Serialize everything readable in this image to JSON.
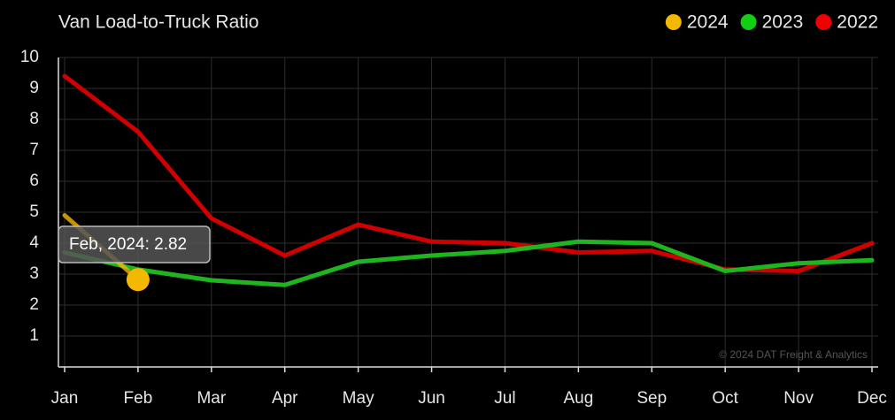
{
  "chart_data": {
    "type": "line",
    "title": "Van Load-to-Truck Ratio",
    "categories": [
      "Jan",
      "Feb",
      "Mar",
      "Apr",
      "May",
      "Jun",
      "Jul",
      "Aug",
      "Sep",
      "Oct",
      "Nov",
      "Dec"
    ],
    "series": [
      {
        "name": "2024",
        "color": "#f5b800",
        "values": [
          4.9,
          2.82,
          null,
          null,
          null,
          null,
          null,
          null,
          null,
          null,
          null,
          null
        ]
      },
      {
        "name": "2023",
        "color": "#1fb51f",
        "values": [
          3.7,
          3.15,
          2.8,
          2.65,
          3.4,
          3.6,
          3.75,
          4.05,
          4.0,
          3.1,
          3.35,
          3.45
        ]
      },
      {
        "name": "2022",
        "color": "#d00000",
        "values": [
          9.4,
          7.6,
          4.8,
          3.6,
          4.6,
          4.05,
          4.0,
          3.7,
          3.75,
          3.15,
          3.1,
          4.0
        ]
      }
    ],
    "legend_colors": [
      "#f5b800",
      "#11d011",
      "#ee0000"
    ],
    "ylim": [
      0,
      10
    ],
    "yticks": [
      1,
      2,
      3,
      4,
      5,
      6,
      7,
      8,
      9,
      10
    ],
    "grid": true,
    "legend": "top-right",
    "tooltip": "Feb, 2024: 2.82",
    "watermark": "© 2024 DAT Freight & Analytics"
  }
}
